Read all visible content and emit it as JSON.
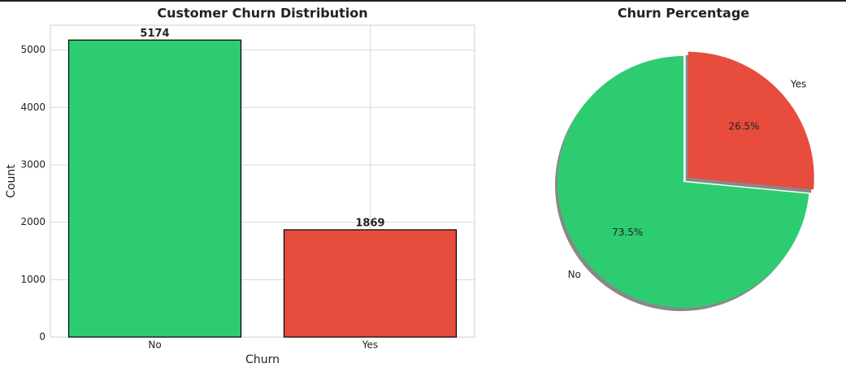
{
  "chart_data": [
    {
      "type": "bar",
      "title": "Customer Churn Distribution",
      "xlabel": "Churn",
      "ylabel": "Count",
      "categories": [
        "No",
        "Yes"
      ],
      "values": [
        5174,
        1869
      ],
      "colors": [
        "#2ecc71",
        "#e74c3c"
      ],
      "ylim": [
        0,
        5433
      ],
      "yticks": [
        0,
        1000,
        2000,
        3000,
        4000,
        5000
      ],
      "grid": true
    },
    {
      "type": "pie",
      "title": "Churn Percentage",
      "labels": [
        "No",
        "Yes"
      ],
      "values": [
        73.5,
        26.5
      ],
      "value_labels": [
        "73.5%",
        "26.5%"
      ],
      "colors": [
        "#2ecc71",
        "#e74c3c"
      ],
      "explode": [
        0,
        0.05
      ],
      "startangle": 90,
      "shadow": true
    }
  ]
}
